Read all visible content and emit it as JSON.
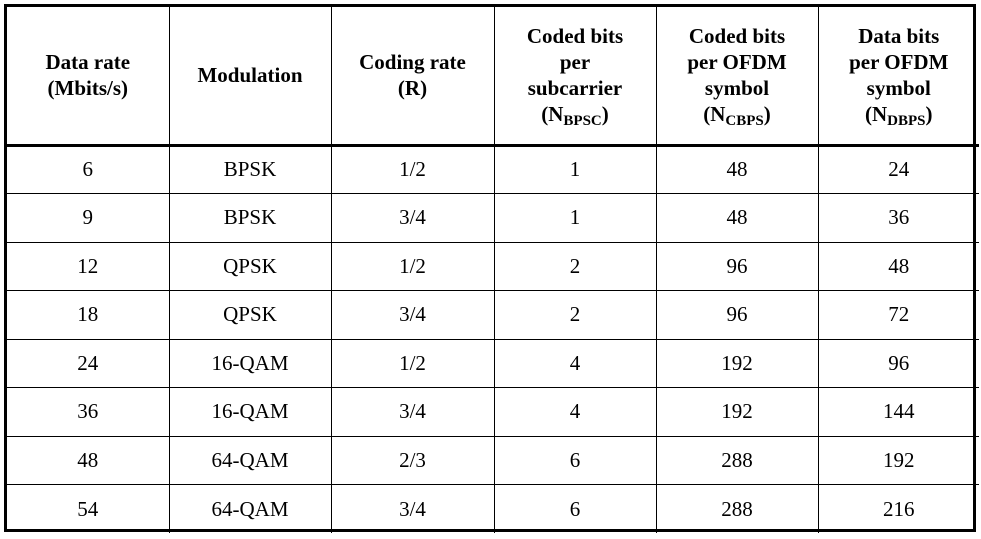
{
  "table": {
    "headers": [
      {
        "lines": [
          "Data rate",
          "(Mbits/s)"
        ]
      },
      {
        "lines": [
          "Modulation"
        ]
      },
      {
        "lines": [
          "Coding rate",
          "(R)"
        ]
      },
      {
        "lines": [
          "Coded bits",
          "per",
          "subcarrier"
        ],
        "sym": "N",
        "sub": "BPSC"
      },
      {
        "lines": [
          "Coded bits",
          "per OFDM",
          "symbol"
        ],
        "sym": "N",
        "sub": "CBPS"
      },
      {
        "lines": [
          "Data bits",
          "per OFDM",
          "symbol"
        ],
        "sym": "N",
        "sub": "DBPS"
      }
    ],
    "rows": [
      [
        "6",
        "BPSK",
        "1/2",
        "1",
        "48",
        "24"
      ],
      [
        "9",
        "BPSK",
        "3/4",
        "1",
        "48",
        "36"
      ],
      [
        "12",
        "QPSK",
        "1/2",
        "2",
        "96",
        "48"
      ],
      [
        "18",
        "QPSK",
        "3/4",
        "2",
        "96",
        "72"
      ],
      [
        "24",
        "16-QAM",
        "1/2",
        "4",
        "192",
        "96"
      ],
      [
        "36",
        "16-QAM",
        "3/4",
        "4",
        "192",
        "144"
      ],
      [
        "48",
        "64-QAM",
        "2/3",
        "6",
        "288",
        "192"
      ],
      [
        "54",
        "64-QAM",
        "3/4",
        "6",
        "288",
        "216"
      ]
    ]
  }
}
